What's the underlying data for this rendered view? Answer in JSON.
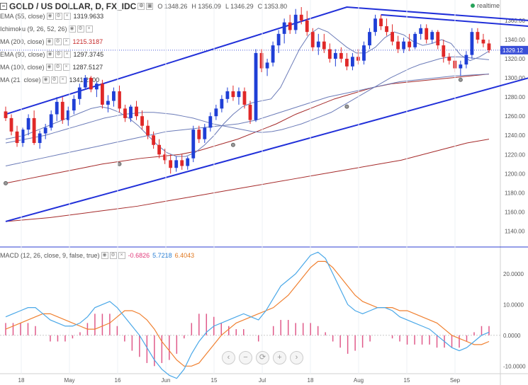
{
  "header": {
    "symbol": "GOLD / US DOLLAR, D, FX_IDC",
    "open": "O 1348.26",
    "high": "H 1356.09",
    "low": "L 1346.29",
    "close": "C 1353.80",
    "realtime": "realtime"
  },
  "indicators": [
    {
      "label": "EMA (55, close)",
      "value": "1319.9633",
      "color": "#333333"
    },
    {
      "label": "Ichimoku (9, 26, 52, 26)",
      "value": "",
      "color": "#333333"
    },
    {
      "label": "MA (200, close)",
      "value": "1215.3187",
      "color": "#c62828"
    },
    {
      "label": "EMA (90, close)",
      "value": "1297.3745",
      "color": "#333333"
    },
    {
      "label": "MA (100, close)",
      "value": "1287.5127",
      "color": "#333333"
    },
    {
      "label": "MA (21, close)",
      "value": "1341.2100",
      "color": "#333333"
    }
  ],
  "macd_legend": {
    "label": "MACD (12, 26, close, 9, false, true)",
    "hist": "-0.6826",
    "macd": "5.7218",
    "signal": "6.4043"
  },
  "current_price_label": "1329.12",
  "colors": {
    "up": "#1f3fd6",
    "down": "#e02828",
    "trend": "#2130d9",
    "ema": "#6b7bb8",
    "ma200": "#a52a2a",
    "macd": "#4aa8e8",
    "signal": "#f08030",
    "hist": "#e05a8a"
  },
  "chart_data": {
    "type": "candlestick",
    "y_ticks": [
      "1360.00",
      "1340.00",
      "1320.00",
      "1300.00",
      "1280.00",
      "1260.00",
      "1240.00",
      "1220.00",
      "1200.00",
      "1180.00",
      "1160.00",
      "1140.00"
    ],
    "ylim": [
      1130,
      1374
    ],
    "x_ticks": [
      "18",
      "May",
      "16",
      "Jun",
      "15",
      "Jul",
      "18",
      "Aug",
      "15",
      "Sep"
    ],
    "candles": [
      [
        1265,
        1270,
        1255,
        1258
      ],
      [
        1258,
        1262,
        1240,
        1244
      ],
      [
        1244,
        1250,
        1228,
        1232
      ],
      [
        1232,
        1248,
        1228,
        1246
      ],
      [
        1246,
        1262,
        1240,
        1258
      ],
      [
        1258,
        1266,
        1230,
        1232
      ],
      [
        1232,
        1245,
        1226,
        1242
      ],
      [
        1242,
        1252,
        1236,
        1248
      ],
      [
        1248,
        1266,
        1245,
        1262
      ],
      [
        1262,
        1280,
        1255,
        1275
      ],
      [
        1275,
        1280,
        1252,
        1256
      ],
      [
        1256,
        1270,
        1250,
        1266
      ],
      [
        1266,
        1282,
        1262,
        1278
      ],
      [
        1278,
        1294,
        1272,
        1290
      ],
      [
        1290,
        1303,
        1288,
        1300
      ],
      [
        1300,
        1302,
        1285,
        1288
      ],
      [
        1288,
        1296,
        1280,
        1294
      ],
      [
        1294,
        1298,
        1268,
        1272
      ],
      [
        1272,
        1282,
        1264,
        1276
      ],
      [
        1276,
        1290,
        1270,
        1286
      ],
      [
        1286,
        1292,
        1264,
        1268
      ],
      [
        1268,
        1272,
        1254,
        1258
      ],
      [
        1258,
        1272,
        1254,
        1270
      ],
      [
        1270,
        1276,
        1256,
        1260
      ],
      [
        1260,
        1266,
        1246,
        1250
      ],
      [
        1250,
        1256,
        1236,
        1240
      ],
      [
        1240,
        1244,
        1226,
        1230
      ],
      [
        1230,
        1236,
        1216,
        1220
      ],
      [
        1220,
        1226,
        1210,
        1214
      ],
      [
        1214,
        1220,
        1200,
        1206
      ],
      [
        1206,
        1218,
        1202,
        1214
      ],
      [
        1214,
        1220,
        1204,
        1208
      ],
      [
        1208,
        1218,
        1204,
        1216
      ],
      [
        1216,
        1250,
        1212,
        1246
      ],
      [
        1246,
        1250,
        1232,
        1236
      ],
      [
        1236,
        1252,
        1232,
        1248
      ],
      [
        1248,
        1264,
        1244,
        1260
      ],
      [
        1260,
        1272,
        1256,
        1268
      ],
      [
        1268,
        1282,
        1264,
        1278
      ],
      [
        1278,
        1290,
        1274,
        1286
      ],
      [
        1286,
        1292,
        1276,
        1280
      ],
      [
        1280,
        1290,
        1272,
        1286
      ],
      [
        1286,
        1290,
        1268,
        1272
      ],
      [
        1272,
        1276,
        1252,
        1256
      ],
      [
        1256,
        1330,
        1254,
        1326
      ],
      [
        1326,
        1330,
        1306,
        1310
      ],
      [
        1310,
        1320,
        1302,
        1316
      ],
      [
        1316,
        1338,
        1312,
        1334
      ],
      [
        1334,
        1350,
        1326,
        1346
      ],
      [
        1346,
        1362,
        1336,
        1358
      ],
      [
        1358,
        1366,
        1346,
        1350
      ],
      [
        1350,
        1372,
        1346,
        1366
      ],
      [
        1366,
        1374,
        1356,
        1360
      ],
      [
        1360,
        1370,
        1344,
        1348
      ],
      [
        1348,
        1352,
        1328,
        1332
      ],
      [
        1332,
        1346,
        1324,
        1338
      ],
      [
        1338,
        1346,
        1326,
        1330
      ],
      [
        1330,
        1336,
        1316,
        1320
      ],
      [
        1320,
        1330,
        1312,
        1326
      ],
      [
        1326,
        1332,
        1316,
        1320
      ],
      [
        1320,
        1326,
        1308,
        1312
      ],
      [
        1312,
        1326,
        1308,
        1322
      ],
      [
        1322,
        1330,
        1314,
        1318
      ],
      [
        1318,
        1338,
        1314,
        1334
      ],
      [
        1334,
        1352,
        1330,
        1348
      ],
      [
        1348,
        1366,
        1344,
        1362
      ],
      [
        1362,
        1366,
        1350,
        1354
      ],
      [
        1354,
        1362,
        1344,
        1348
      ],
      [
        1348,
        1356,
        1334,
        1338
      ],
      [
        1338,
        1344,
        1326,
        1330
      ],
      [
        1330,
        1342,
        1326,
        1338
      ],
      [
        1338,
        1346,
        1328,
        1332
      ],
      [
        1332,
        1348,
        1330,
        1346
      ],
      [
        1346,
        1356,
        1340,
        1352
      ],
      [
        1352,
        1356,
        1336,
        1340
      ],
      [
        1340,
        1350,
        1336,
        1348
      ],
      [
        1348,
        1350,
        1330,
        1334
      ],
      [
        1334,
        1340,
        1316,
        1322
      ],
      [
        1322,
        1326,
        1314,
        1318
      ],
      [
        1318,
        1324,
        1306,
        1310
      ],
      [
        1310,
        1318,
        1302,
        1314
      ],
      [
        1314,
        1328,
        1310,
        1324
      ],
      [
        1324,
        1352,
        1320,
        1348
      ],
      [
        1348,
        1352,
        1336,
        1340
      ],
      [
        1340,
        1346,
        1332,
        1336
      ],
      [
        1336,
        1340,
        1326,
        1329
      ]
    ],
    "ema55": [
      1232,
      1234,
      1236,
      1238,
      1240,
      1243,
      1246,
      1249,
      1252,
      1255,
      1258,
      1260,
      1262,
      1263,
      1264,
      1264,
      1263,
      1262,
      1260,
      1258,
      1255,
      1252,
      1250,
      1248,
      1246,
      1244,
      1243,
      1244,
      1246,
      1249,
      1252,
      1256,
      1260,
      1264,
      1270,
      1276,
      1282,
      1288,
      1294,
      1300,
      1305,
      1310,
      1314,
      1317,
      1320,
      1322,
      1322,
      1321,
      1320,
      1319
    ],
    "ema21": [
      1236,
      1238,
      1240,
      1244,
      1248,
      1252,
      1256,
      1260,
      1264,
      1268,
      1270,
      1268,
      1264,
      1258,
      1250,
      1240,
      1230,
      1222,
      1218,
      1218,
      1222,
      1230,
      1240,
      1252,
      1262,
      1270,
      1274,
      1276,
      1278,
      1290,
      1310,
      1330,
      1345,
      1352,
      1348,
      1340,
      1332,
      1326,
      1326,
      1332,
      1342,
      1348,
      1345,
      1338,
      1334,
      1336,
      1340,
      1336,
      1324,
      1318,
      1322,
      1328
    ],
    "ma100": [
      1208,
      1212,
      1216,
      1220,
      1224,
      1228,
      1232,
      1236,
      1240,
      1244,
      1246,
      1248,
      1250,
      1252,
      1256,
      1262,
      1268,
      1274,
      1280,
      1284,
      1288,
      1292,
      1296,
      1298,
      1300,
      1302,
      1303,
      1304
    ],
    "ma200": [
      1150,
      1152,
      1154,
      1157,
      1160,
      1163,
      1166,
      1170,
      1174,
      1178,
      1182,
      1186,
      1190,
      1194,
      1198,
      1202,
      1206,
      1210,
      1214,
      1220,
      1226,
      1232,
      1236
    ],
    "ema90": [
      1190,
      1194,
      1198,
      1202,
      1206,
      1210,
      1213,
      1216,
      1218,
      1220,
      1224,
      1230,
      1236,
      1244,
      1252,
      1262,
      1270,
      1278,
      1284,
      1290,
      1294,
      1296,
      1298,
      1300,
      1302,
      1304
    ],
    "trend_upper": [
      [
        0,
        1262
      ],
      [
        60,
        1374
      ],
      [
        92,
        1360
      ]
    ],
    "trend_lower": [
      [
        0,
        1150
      ],
      [
        92,
        1300
      ]
    ],
    "resistance": [
      [
        66,
        1366
      ],
      [
        92,
        1354
      ]
    ],
    "macd": {
      "ylim": [
        -12,
        28
      ],
      "y_ticks": [
        "20.0000",
        "10.0000",
        "0.0000",
        "-10.0000"
      ],
      "macd_line": [
        6,
        7,
        8,
        9,
        9,
        7,
        5,
        4,
        3,
        3,
        4,
        6,
        9,
        10,
        11,
        9,
        6,
        3,
        0,
        -4,
        -8,
        -11,
        -13,
        -14,
        -11,
        -6,
        -2,
        1,
        3,
        4,
        5,
        6,
        7,
        6,
        5,
        8,
        12,
        16,
        18,
        20,
        23,
        26,
        27,
        25,
        20,
        15,
        10,
        8,
        7,
        8,
        9,
        9,
        8,
        6,
        5,
        4,
        3,
        2,
        0,
        -2,
        -4,
        -5,
        -4,
        -2,
        0,
        1
      ],
      "signal_line": [
        2,
        3,
        4,
        5,
        6,
        7,
        7,
        6,
        5,
        4,
        3,
        2,
        2,
        3,
        4,
        6,
        8,
        8,
        7,
        5,
        2,
        -2,
        -5,
        -8,
        -10,
        -10,
        -9,
        -6,
        -3,
        0,
        2,
        4,
        5,
        6,
        7,
        8,
        9,
        11,
        13,
        16,
        19,
        22,
        24,
        24,
        22,
        19,
        16,
        13,
        11,
        10,
        9,
        9,
        9,
        8,
        8,
        7,
        6,
        5,
        4,
        2,
        0,
        -1,
        -2,
        -3,
        -3,
        -2
      ],
      "histogram": [
        4,
        4,
        4,
        4,
        3,
        0,
        -2,
        -2,
        -2,
        -1,
        1,
        4,
        7,
        7,
        7,
        3,
        -2,
        -5,
        -7,
        -9,
        -10,
        -9,
        -8,
        -6,
        -1,
        4,
        7,
        7,
        6,
        4,
        3,
        2,
        2,
        0,
        -2,
        0,
        3,
        5,
        5,
        4,
        4,
        4,
        3,
        1,
        -2,
        -4,
        -6,
        -5,
        -4,
        -2,
        0,
        0,
        -1,
        -2,
        -3,
        -3,
        -3,
        -3,
        -4,
        -4,
        -4,
        -4,
        -2,
        1,
        3,
        3
      ]
    }
  },
  "nav_buttons": [
    "‹",
    "−",
    "⟳",
    "+",
    "›"
  ]
}
